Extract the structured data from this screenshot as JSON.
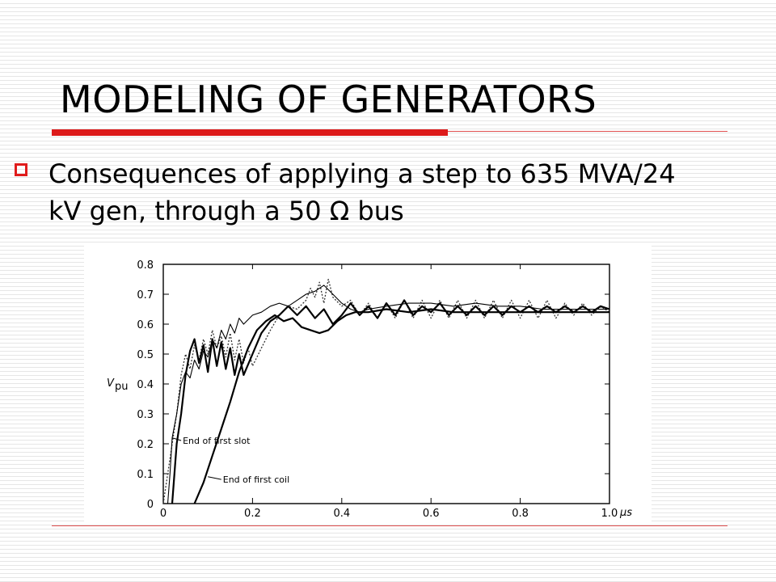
{
  "slide": {
    "title": "MODELING OF GENERATORS",
    "bullet": "Consequences of applying a step to 635 MVA/24 kV gen, through a 50 Ω bus"
  },
  "colors": {
    "accent": "#dd1b1b",
    "text": "#000000"
  },
  "icons": {
    "bullet": "hollow-square-icon"
  },
  "chart_data": {
    "type": "line",
    "ylabel": "Vpu",
    "xunit": "µs",
    "xlim": [
      0,
      1.0
    ],
    "ylim": [
      0,
      0.8
    ],
    "x_ticks": [
      0,
      0.2,
      0.4,
      0.6,
      0.8,
      1.0
    ],
    "x_tick_labels": [
      "0",
      "0.2",
      "0.4",
      "0.6",
      "0.8",
      "1.0"
    ],
    "y_ticks": [
      0,
      0.1,
      0.2,
      0.3,
      0.4,
      0.5,
      0.6,
      0.7,
      0.8
    ],
    "y_tick_labels": [
      "0",
      "0.1",
      "0.2",
      "0.3",
      "0.4",
      "0.5",
      "0.6",
      "0.7",
      "0.8"
    ],
    "grid": false,
    "annotations": [
      {
        "text": "End of first slot",
        "at": [
          0.04,
          0.2
        ],
        "points_to": [
          0.02,
          0.22
        ]
      },
      {
        "text": "End of first coil",
        "at": [
          0.13,
          0.07
        ],
        "points_to": [
          0.1,
          0.09
        ]
      }
    ],
    "series": [
      {
        "style": "dotted",
        "points": [
          [
            0,
            0
          ],
          [
            0.01,
            0.1
          ],
          [
            0.02,
            0.2
          ],
          [
            0.03,
            0.3
          ],
          [
            0.04,
            0.43
          ],
          [
            0.05,
            0.5
          ],
          [
            0.06,
            0.45
          ],
          [
            0.07,
            0.53
          ],
          [
            0.08,
            0.48
          ],
          [
            0.09,
            0.55
          ],
          [
            0.1,
            0.5
          ],
          [
            0.11,
            0.58
          ],
          [
            0.12,
            0.52
          ],
          [
            0.13,
            0.56
          ],
          [
            0.14,
            0.49
          ],
          [
            0.15,
            0.57
          ],
          [
            0.16,
            0.48
          ],
          [
            0.17,
            0.55
          ],
          [
            0.18,
            0.47
          ],
          [
            0.19,
            0.52
          ],
          [
            0.2,
            0.46
          ],
          [
            0.22,
            0.52
          ],
          [
            0.24,
            0.58
          ],
          [
            0.26,
            0.63
          ],
          [
            0.28,
            0.66
          ],
          [
            0.3,
            0.65
          ],
          [
            0.32,
            0.68
          ],
          [
            0.33,
            0.72
          ],
          [
            0.34,
            0.69
          ],
          [
            0.35,
            0.74
          ],
          [
            0.36,
            0.67
          ],
          [
            0.37,
            0.75
          ],
          [
            0.38,
            0.69
          ],
          [
            0.4,
            0.66
          ],
          [
            0.42,
            0.68
          ],
          [
            0.44,
            0.63
          ],
          [
            0.46,
            0.67
          ],
          [
            0.48,
            0.62
          ],
          [
            0.5,
            0.67
          ],
          [
            0.52,
            0.62
          ],
          [
            0.54,
            0.68
          ],
          [
            0.56,
            0.62
          ],
          [
            0.58,
            0.68
          ],
          [
            0.6,
            0.62
          ],
          [
            0.62,
            0.68
          ],
          [
            0.64,
            0.62
          ],
          [
            0.66,
            0.68
          ],
          [
            0.68,
            0.62
          ],
          [
            0.7,
            0.68
          ],
          [
            0.72,
            0.62
          ],
          [
            0.74,
            0.68
          ],
          [
            0.76,
            0.62
          ],
          [
            0.78,
            0.68
          ],
          [
            0.8,
            0.62
          ],
          [
            0.82,
            0.68
          ],
          [
            0.84,
            0.62
          ],
          [
            0.86,
            0.68
          ],
          [
            0.88,
            0.62
          ],
          [
            0.9,
            0.67
          ],
          [
            0.92,
            0.63
          ],
          [
            0.94,
            0.67
          ],
          [
            0.96,
            0.63
          ],
          [
            0.98,
            0.66
          ],
          [
            1.0,
            0.64
          ]
        ]
      },
      {
        "style": "thin",
        "points": [
          [
            0.01,
            0
          ],
          [
            0.015,
            0.1
          ],
          [
            0.02,
            0.22
          ],
          [
            0.03,
            0.3
          ],
          [
            0.04,
            0.4
          ],
          [
            0.05,
            0.44
          ],
          [
            0.06,
            0.42
          ],
          [
            0.07,
            0.48
          ],
          [
            0.08,
            0.45
          ],
          [
            0.09,
            0.51
          ],
          [
            0.1,
            0.49
          ],
          [
            0.11,
            0.55
          ],
          [
            0.12,
            0.52
          ],
          [
            0.13,
            0.58
          ],
          [
            0.14,
            0.55
          ],
          [
            0.15,
            0.6
          ],
          [
            0.16,
            0.57
          ],
          [
            0.17,
            0.62
          ],
          [
            0.18,
            0.6
          ],
          [
            0.2,
            0.63
          ],
          [
            0.22,
            0.64
          ],
          [
            0.24,
            0.66
          ],
          [
            0.26,
            0.67
          ],
          [
            0.28,
            0.66
          ],
          [
            0.3,
            0.68
          ],
          [
            0.32,
            0.7
          ],
          [
            0.34,
            0.71
          ],
          [
            0.36,
            0.73
          ],
          [
            0.38,
            0.7
          ],
          [
            0.4,
            0.67
          ],
          [
            0.42,
            0.65
          ],
          [
            0.44,
            0.64
          ],
          [
            0.46,
            0.65
          ],
          [
            0.5,
            0.66
          ],
          [
            0.55,
            0.67
          ],
          [
            0.6,
            0.67
          ],
          [
            0.65,
            0.66
          ],
          [
            0.7,
            0.67
          ],
          [
            0.75,
            0.66
          ],
          [
            0.8,
            0.66
          ],
          [
            0.85,
            0.65
          ],
          [
            0.9,
            0.65
          ],
          [
            0.95,
            0.65
          ],
          [
            1.0,
            0.65
          ]
        ]
      },
      {
        "style": "solid",
        "points": [
          [
            0.02,
            0
          ],
          [
            0.025,
            0.1
          ],
          [
            0.03,
            0.2
          ],
          [
            0.04,
            0.3
          ],
          [
            0.05,
            0.43
          ],
          [
            0.06,
            0.51
          ],
          [
            0.07,
            0.55
          ],
          [
            0.08,
            0.47
          ],
          [
            0.09,
            0.53
          ],
          [
            0.1,
            0.44
          ],
          [
            0.11,
            0.55
          ],
          [
            0.12,
            0.46
          ],
          [
            0.13,
            0.54
          ],
          [
            0.14,
            0.45
          ],
          [
            0.15,
            0.52
          ],
          [
            0.16,
            0.43
          ],
          [
            0.17,
            0.5
          ],
          [
            0.18,
            0.43
          ],
          [
            0.2,
            0.5
          ],
          [
            0.22,
            0.57
          ],
          [
            0.24,
            0.61
          ],
          [
            0.26,
            0.63
          ],
          [
            0.28,
            0.66
          ],
          [
            0.3,
            0.63
          ],
          [
            0.32,
            0.66
          ],
          [
            0.34,
            0.62
          ],
          [
            0.36,
            0.65
          ],
          [
            0.38,
            0.6
          ],
          [
            0.4,
            0.63
          ],
          [
            0.42,
            0.67
          ],
          [
            0.44,
            0.63
          ],
          [
            0.46,
            0.66
          ],
          [
            0.48,
            0.62
          ],
          [
            0.5,
            0.67
          ],
          [
            0.52,
            0.63
          ],
          [
            0.54,
            0.68
          ],
          [
            0.56,
            0.63
          ],
          [
            0.58,
            0.66
          ],
          [
            0.6,
            0.64
          ],
          [
            0.62,
            0.67
          ],
          [
            0.64,
            0.63
          ],
          [
            0.66,
            0.66
          ],
          [
            0.68,
            0.63
          ],
          [
            0.7,
            0.66
          ],
          [
            0.72,
            0.63
          ],
          [
            0.74,
            0.66
          ],
          [
            0.76,
            0.63
          ],
          [
            0.78,
            0.66
          ],
          [
            0.8,
            0.64
          ],
          [
            0.82,
            0.66
          ],
          [
            0.84,
            0.64
          ],
          [
            0.86,
            0.66
          ],
          [
            0.88,
            0.64
          ],
          [
            0.9,
            0.66
          ],
          [
            0.92,
            0.64
          ],
          [
            0.94,
            0.66
          ],
          [
            0.96,
            0.64
          ],
          [
            0.98,
            0.66
          ],
          [
            1.0,
            0.65
          ]
        ]
      },
      {
        "style": "solid",
        "points": [
          [
            0.07,
            0
          ],
          [
            0.09,
            0.07
          ],
          [
            0.11,
            0.16
          ],
          [
            0.13,
            0.25
          ],
          [
            0.15,
            0.34
          ],
          [
            0.17,
            0.44
          ],
          [
            0.19,
            0.52
          ],
          [
            0.21,
            0.58
          ],
          [
            0.23,
            0.61
          ],
          [
            0.25,
            0.63
          ],
          [
            0.27,
            0.61
          ],
          [
            0.29,
            0.62
          ],
          [
            0.31,
            0.59
          ],
          [
            0.33,
            0.58
          ],
          [
            0.35,
            0.57
          ],
          [
            0.37,
            0.58
          ],
          [
            0.39,
            0.61
          ],
          [
            0.41,
            0.63
          ],
          [
            0.43,
            0.64
          ],
          [
            0.46,
            0.64
          ],
          [
            0.5,
            0.65
          ],
          [
            0.55,
            0.64
          ],
          [
            0.6,
            0.65
          ],
          [
            0.65,
            0.64
          ],
          [
            0.7,
            0.64
          ],
          [
            0.75,
            0.64
          ],
          [
            0.8,
            0.64
          ],
          [
            0.85,
            0.64
          ],
          [
            0.9,
            0.64
          ],
          [
            0.95,
            0.64
          ],
          [
            1.0,
            0.64
          ]
        ]
      }
    ]
  }
}
